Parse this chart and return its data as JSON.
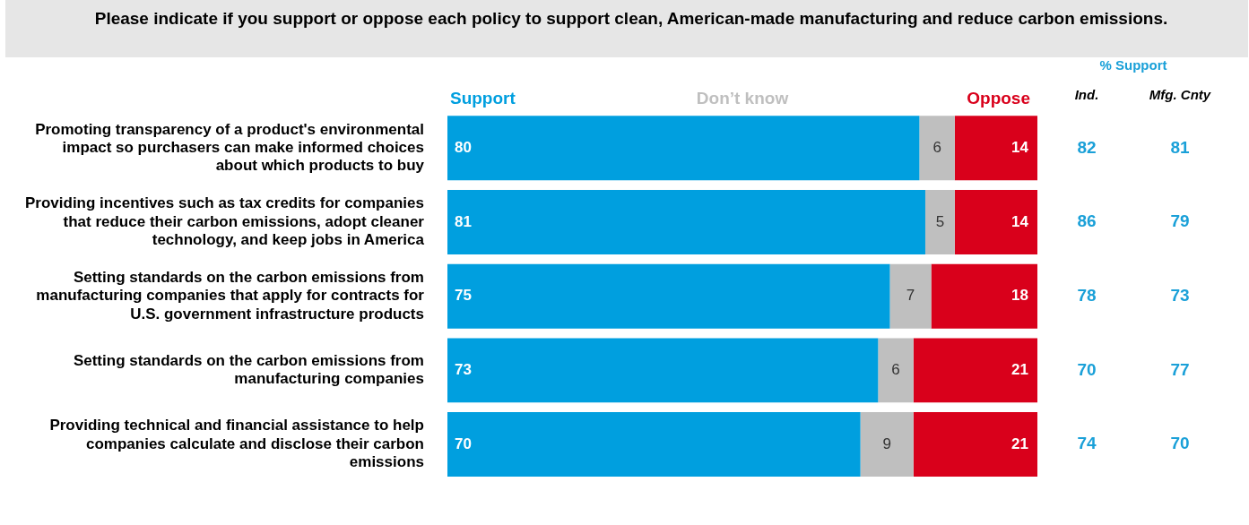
{
  "chart_data": {
    "type": "bar",
    "orientation": "horizontal",
    "stacked": true,
    "title": "Please indicate if you support or oppose each policy to support clean, American-made manufacturing and reduce carbon emissions.",
    "categories": [
      "Promoting transparency of a product's environmental impact so purchasers can make informed choices about which products to buy",
      "Providing incentives such as tax credits for companies that reduce their carbon emissions, adopt cleaner technology, and keep jobs in America",
      "Setting standards on the carbon emissions from manufacturing companies that apply for contracts for U.S. government infrastructure products",
      "Setting standards on the carbon emissions from manufacturing companies",
      "Providing technical and financial assistance to help companies calculate and disclose their carbon emissions"
    ],
    "series": [
      {
        "name": "Support",
        "color": "#009fdf",
        "values": [
          80,
          81,
          75,
          73,
          70
        ]
      },
      {
        "name": "Don’t know",
        "color": "#bfbfbf",
        "values": [
          6,
          5,
          7,
          6,
          9
        ]
      },
      {
        "name": "Oppose",
        "color": "#d9001b",
        "values": [
          14,
          14,
          18,
          21,
          21
        ]
      }
    ],
    "xlim": [
      0,
      100
    ],
    "tick_labels": "y",
    "data_labels": true,
    "legend": "top",
    "annotations": [
      "% Support",
      "Ind.",
      "Mfg. Cnty",
      "82",
      "81",
      "86",
      "79",
      "78",
      "73",
      "70",
      "77",
      "74",
      "70"
    ]
  }
}
